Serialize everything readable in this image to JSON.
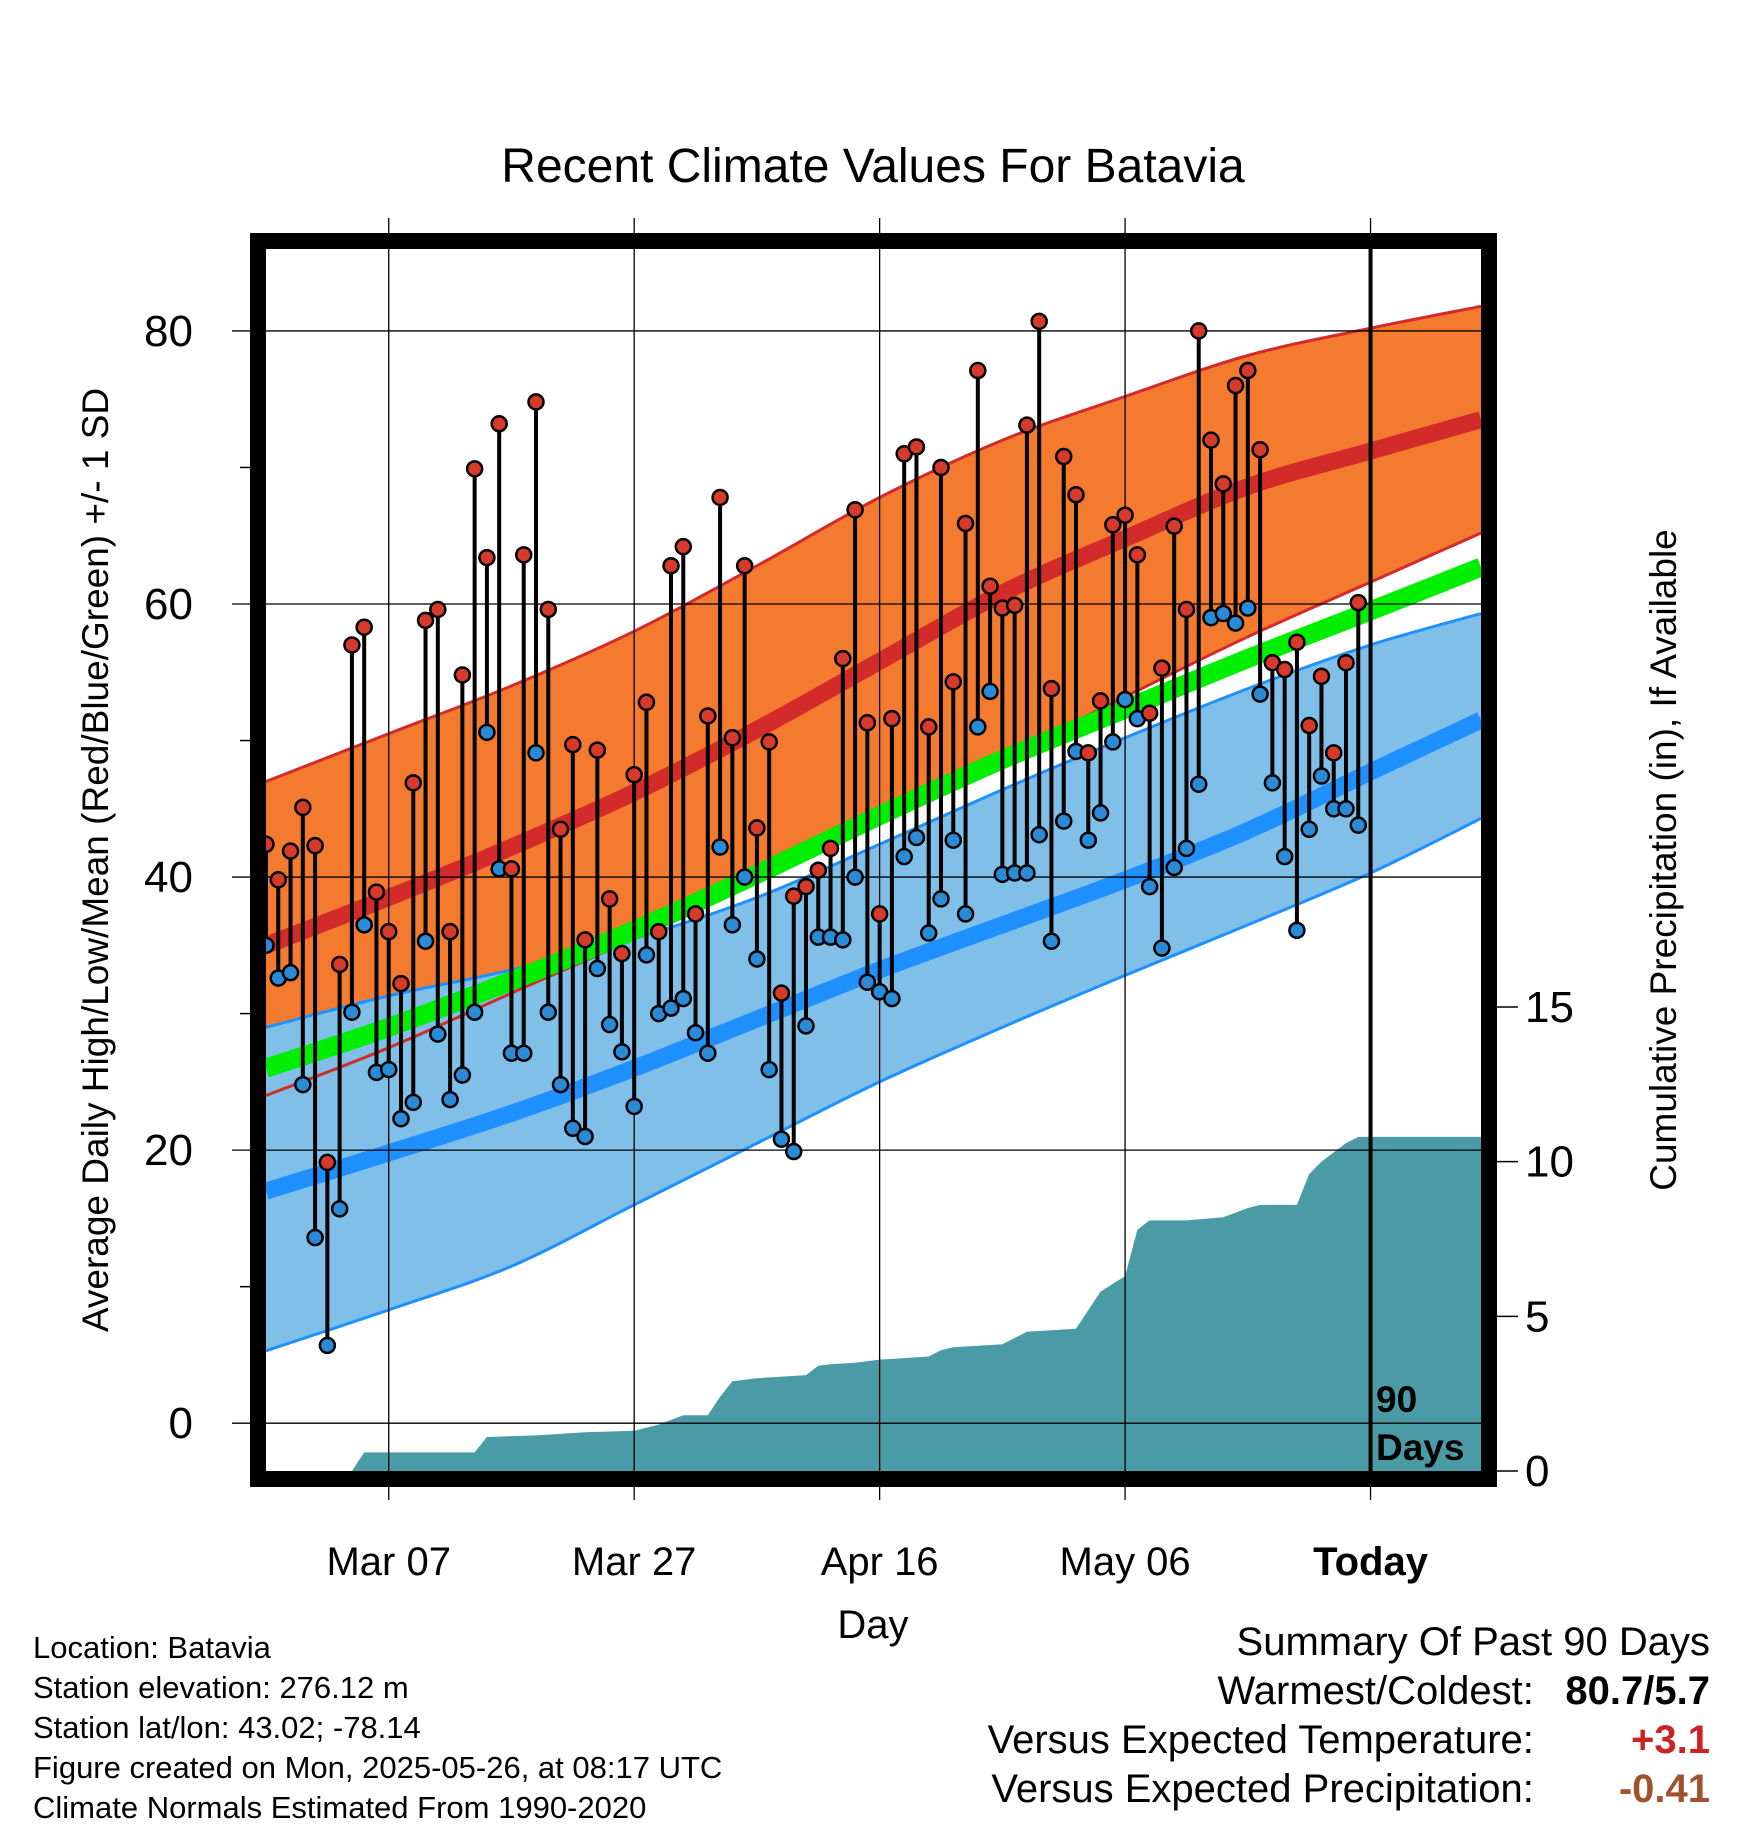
{
  "colors": {
    "above_band": "#f47a30",
    "high_line": "#d32a2a",
    "below_band": "#7fbfe8",
    "low_line": "#1e90ff",
    "mean_line": "#00ee00",
    "precip_fill": "#4a9ba6",
    "high_marker": "#d63a2a",
    "low_marker": "#2a8ad6",
    "temp_anomaly": "#cc2222",
    "precip_anomaly": "#a0522d"
  },
  "chart_data": {
    "type": "line",
    "title": "Recent Climate Values For Batavia",
    "xlabel": "Day",
    "ylabel": "Average Daily High/Low/Mean (Red/Blue/Green) +/- 1 SD",
    "y2label": "Cumulative Precipitation (in), If Available",
    "x_tick_labels": [
      "Mar 07",
      "Mar 27",
      "Apr 16",
      "May 06",
      "Today"
    ],
    "x_tick_days": [
      10,
      30,
      50,
      70,
      90
    ],
    "xlim": [
      0,
      99
    ],
    "y_ticks": [
      0,
      20,
      40,
      60,
      80
    ],
    "ylim": [
      -3.5,
      86
    ],
    "y2_ticks": [
      0,
      5,
      10,
      15
    ],
    "y2lim": [
      0,
      39.5
    ],
    "today_day": 90,
    "today_label_line1": "90",
    "today_label_line2": "Days",
    "grid": true,
    "normals": {
      "days": [
        0,
        10,
        20,
        30,
        40,
        50,
        60,
        70,
        80,
        90,
        99
      ],
      "high_mean": [
        35,
        38.5,
        42.2,
        46.2,
        50.8,
        55.8,
        60.8,
        64.8,
        68.6,
        71.2,
        73.5
      ],
      "high_plus_sd": [
        47,
        50.5,
        54,
        58,
        62.8,
        67.8,
        72,
        75.2,
        78.2,
        80.2,
        81.8
      ],
      "high_minus_sd": [
        24,
        27.5,
        31.5,
        35.5,
        39.8,
        44.3,
        48.7,
        53.2,
        57.6,
        61.6,
        65.2
      ],
      "low_mean": [
        17,
        19.8,
        22.7,
        26,
        29.6,
        33.2,
        36.5,
        39.8,
        43.4,
        47.7,
        51.5
      ],
      "low_plus_sd": [
        29,
        31.3,
        33.2,
        35.5,
        38.5,
        42.4,
        46.4,
        50.2,
        53.8,
        57,
        59.3
      ],
      "low_minus_sd": [
        5.3,
        8.3,
        11.5,
        16,
        20.5,
        25,
        29,
        32.8,
        36.5,
        40.3,
        44.3
      ],
      "mean": [
        26,
        29,
        32.4,
        36.1,
        40.2,
        44.5,
        48.6,
        52.3,
        56,
        59.5,
        62.7
      ]
    },
    "series": [
      {
        "name": "High",
        "values": [
          42.4,
          39.8,
          41.9,
          45.1,
          42.3,
          19.1,
          33.6,
          57.0,
          58.3,
          38.9,
          36.0,
          32.2,
          46.9,
          58.8,
          59.6,
          36.0,
          54.8,
          69.9,
          63.4,
          73.2,
          40.6,
          63.6,
          74.8,
          59.6,
          43.5,
          49.7,
          35.4,
          49.3,
          38.4,
          34.4,
          47.5,
          52.8,
          36.0,
          62.8,
          64.2,
          37.3,
          51.8,
          67.8,
          50.2,
          62.8,
          43.6,
          49.9,
          31.5,
          38.6,
          39.3,
          40.5,
          42.1,
          56.0,
          66.9,
          51.3,
          37.3,
          51.6,
          71.0,
          71.5,
          51.0,
          70.0,
          54.3,
          65.9,
          77.1,
          61.3,
          59.7,
          59.9,
          73.1,
          80.7,
          53.8,
          70.8,
          68.0,
          49.1,
          52.9,
          65.8,
          66.5,
          63.6,
          52.0,
          55.3,
          65.7,
          59.6,
          80.0,
          72.0,
          68.8,
          76.0,
          77.1,
          71.3,
          55.7,
          55.2,
          57.2,
          51.1,
          54.7,
          49.1,
          55.7,
          60.1
        ]
      },
      {
        "name": "Low",
        "values": [
          35.0,
          32.6,
          33.0,
          24.8,
          13.6,
          5.7,
          15.7,
          30.1,
          36.5,
          25.7,
          25.9,
          22.3,
          23.5,
          35.3,
          28.5,
          23.7,
          25.5,
          30.1,
          50.6,
          40.6,
          27.1,
          27.1,
          49.1,
          30.1,
          24.8,
          21.6,
          21.0,
          33.3,
          29.2,
          27.2,
          23.2,
          34.3,
          30.0,
          30.4,
          31.1,
          28.6,
          27.1,
          42.2,
          36.5,
          40.0,
          34.0,
          25.9,
          20.8,
          19.9,
          29.1,
          35.6,
          35.6,
          35.4,
          40.0,
          32.3,
          31.6,
          31.1,
          41.5,
          42.9,
          35.9,
          38.4,
          42.7,
          37.3,
          51.0,
          53.6,
          40.2,
          40.3,
          40.3,
          43.1,
          35.3,
          44.1,
          49.2,
          42.7,
          44.7,
          49.9,
          53.0,
          51.6,
          39.3,
          34.8,
          40.7,
          42.1,
          46.8,
          59.0,
          59.3,
          58.6,
          59.7,
          53.4,
          46.9,
          41.5,
          36.1,
          43.5,
          47.4,
          45.0,
          45.0,
          43.8
        ]
      },
      {
        "name": "Cumulative Precipitation",
        "days": [
          0,
          7,
          8,
          17,
          18,
          22,
          26,
          30,
          32,
          34,
          36,
          37,
          38,
          40,
          44,
          45,
          46,
          48,
          50,
          52,
          54,
          55,
          56,
          60,
          62,
          66,
          67,
          68,
          70,
          71,
          72,
          75,
          78,
          80,
          81,
          84,
          85,
          86,
          87,
          88,
          89,
          99
        ],
        "values": [
          0,
          0,
          0.6,
          0.6,
          1.1,
          1.15,
          1.25,
          1.3,
          1.5,
          1.8,
          1.8,
          2.4,
          2.9,
          3.0,
          3.1,
          3.4,
          3.45,
          3.5,
          3.6,
          3.65,
          3.7,
          3.9,
          4.0,
          4.1,
          4.5,
          4.6,
          5.2,
          5.8,
          6.3,
          7.8,
          8.1,
          8.1,
          8.2,
          8.5,
          8.6,
          8.6,
          9.6,
          10.0,
          10.3,
          10.6,
          10.8,
          10.8
        ]
      }
    ]
  },
  "footer": {
    "location": "Location: Batavia",
    "elevation": "Station elevation: 276.12 m",
    "latlon": "Station lat/lon: 43.02; -78.14",
    "created": "Figure created on Mon, 2025-05-26, at 08:17 UTC",
    "normals": "Climate Normals Estimated From 1990-2020"
  },
  "summary": {
    "heading": "Summary Of Past 90 Days",
    "warmest_label": "Warmest/Coldest:",
    "warmest_value": "80.7/5.7",
    "temp_label": "Versus Expected Temperature:",
    "temp_value": "+3.1",
    "precip_label": "Versus Expected Precipitation:",
    "precip_value": "-0.41"
  }
}
